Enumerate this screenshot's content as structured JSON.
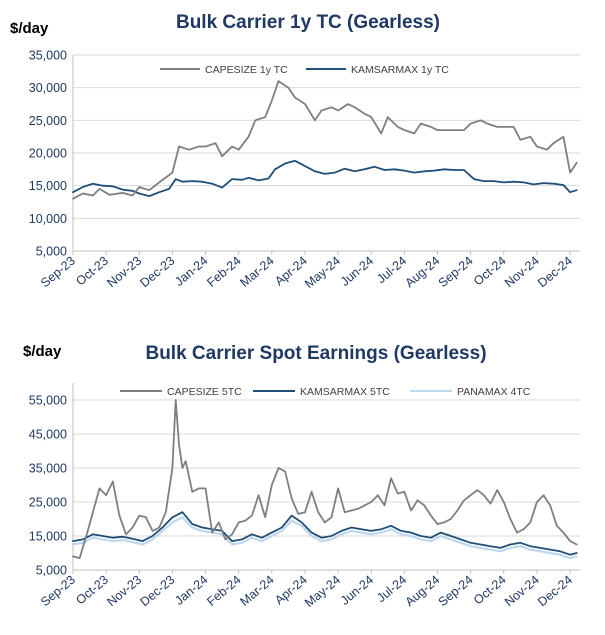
{
  "chart_data": [
    {
      "type": "line",
      "title": "Bulk Carrier 1y TC (Gearless)",
      "unit_label": "$/day",
      "ylim": [
        5000,
        35000
      ],
      "y_ticks": [
        "5,000",
        "10,000",
        "15,000",
        "20,000",
        "25,000",
        "30,000",
        "35,000"
      ],
      "y_tick_values": [
        5000,
        10000,
        15000,
        20000,
        25000,
        30000,
        35000
      ],
      "x_range": [
        0,
        15.3
      ],
      "x_tick_labels": [
        "Sep-23",
        "Oct-23",
        "Nov-23",
        "Dec-23",
        "Jan-24",
        "Feb-24",
        "Mar-24",
        "Apr-24",
        "May-24",
        "Jun-24",
        "Jul-24",
        "Aug-24",
        "Sep-24",
        "Oct-24",
        "Nov-24",
        "Dec-24"
      ],
      "grid": true,
      "legend_position": "top",
      "series": [
        {
          "name": "CAPESIZE 1y TC",
          "color": "#7f7f7f",
          "x": [
            0,
            0.3,
            0.6,
            0.8,
            1.1,
            1.5,
            1.8,
            2.0,
            2.3,
            2.6,
            3.0,
            3.2,
            3.5,
            3.8,
            4.0,
            4.3,
            4.5,
            4.8,
            5.0,
            5.3,
            5.5,
            5.8,
            6.0,
            6.2,
            6.5,
            6.7,
            7.0,
            7.3,
            7.5,
            7.8,
            8.0,
            8.3,
            8.5,
            8.8,
            9.0,
            9.3,
            9.5,
            9.8,
            10.0,
            10.3,
            10.5,
            10.8,
            11.0,
            11.3,
            11.5,
            11.8,
            12.0,
            12.3,
            12.5,
            12.8,
            13.0,
            13.3,
            13.5,
            13.8,
            14.0,
            14.3,
            14.5,
            14.8,
            15.0,
            15.2
          ],
          "values": [
            13000,
            13800,
            13500,
            14500,
            13600,
            13900,
            13500,
            14800,
            14300,
            15500,
            17000,
            21000,
            20500,
            21000,
            21000,
            21500,
            19500,
            21000,
            20500,
            22500,
            25000,
            25500,
            28000,
            31000,
            30000,
            28500,
            27500,
            25000,
            26500,
            27000,
            26500,
            27500,
            27000,
            26000,
            25500,
            23000,
            25500,
            24000,
            23500,
            23000,
            24500,
            24000,
            23500,
            23500,
            23500,
            23500,
            24500,
            25000,
            24500,
            24000,
            24000,
            24000,
            22000,
            22500,
            21000,
            20500,
            21500,
            22500,
            17000,
            18500
          ]
        },
        {
          "name": "KAMSARMAX 1y TC",
          "color": "#1f4e79",
          "x": [
            0,
            0.3,
            0.6,
            0.9,
            1.2,
            1.5,
            1.8,
            2.0,
            2.3,
            2.6,
            2.9,
            3.1,
            3.3,
            3.6,
            3.9,
            4.2,
            4.5,
            4.8,
            5.1,
            5.3,
            5.6,
            5.9,
            6.1,
            6.4,
            6.7,
            7.0,
            7.3,
            7.6,
            7.9,
            8.2,
            8.5,
            8.8,
            9.1,
            9.4,
            9.7,
            10.0,
            10.3,
            10.6,
            10.9,
            11.2,
            11.5,
            11.8,
            12.1,
            12.4,
            12.7,
            13.0,
            13.3,
            13.6,
            13.9,
            14.2,
            14.5,
            14.8,
            15.0,
            15.2
          ],
          "values": [
            14000,
            14800,
            15300,
            15000,
            14900,
            14400,
            14200,
            13800,
            13400,
            14000,
            14500,
            16000,
            15600,
            15700,
            15600,
            15300,
            14700,
            16000,
            15900,
            16200,
            15800,
            16100,
            17500,
            18400,
            18800,
            18000,
            17200,
            16800,
            17000,
            17600,
            17200,
            17500,
            17900,
            17400,
            17500,
            17300,
            17000,
            17200,
            17300,
            17500,
            17400,
            17400,
            16000,
            15700,
            15700,
            15500,
            15600,
            15500,
            15200,
            15400,
            15300,
            15100,
            14000,
            14300
          ]
        }
      ]
    },
    {
      "type": "line",
      "title": "Bulk Carrier Spot Earnings (Gearless)",
      "unit_label": "$/day",
      "ylim": [
        5000,
        60000
      ],
      "y_ticks": [
        "5,000",
        "15,000",
        "25,000",
        "35,000",
        "45,000",
        "55,000"
      ],
      "y_tick_values": [
        5000,
        15000,
        25000,
        35000,
        45000,
        55000
      ],
      "x_range": [
        0,
        15.3
      ],
      "x_tick_labels": [
        "Sep-23",
        "Oct-23",
        "Nov-23",
        "Dec-23",
        "Jan-24",
        "Feb-24",
        "Mar-24",
        "Apr-24",
        "May-24",
        "Jun-24",
        "Jul-24",
        "Aug-24",
        "Sep-24",
        "Oct-24",
        "Nov-24",
        "Dec-24"
      ],
      "grid": true,
      "legend_position": "top",
      "series": [
        {
          "name": "CAPESIZE 5TC",
          "color": "#7f7f7f",
          "x": [
            0,
            0.2,
            0.4,
            0.6,
            0.8,
            1.0,
            1.2,
            1.4,
            1.6,
            1.8,
            2.0,
            2.2,
            2.4,
            2.6,
            2.8,
            3.0,
            3.1,
            3.2,
            3.3,
            3.4,
            3.6,
            3.8,
            4.0,
            4.2,
            4.4,
            4.6,
            4.8,
            5.0,
            5.2,
            5.4,
            5.6,
            5.8,
            6.0,
            6.2,
            6.4,
            6.6,
            6.8,
            7.0,
            7.2,
            7.4,
            7.6,
            7.8,
            8.0,
            8.2,
            8.4,
            8.6,
            8.8,
            9.0,
            9.2,
            9.4,
            9.6,
            9.8,
            10.0,
            10.2,
            10.4,
            10.6,
            10.8,
            11.0,
            11.2,
            11.4,
            11.6,
            11.8,
            12.0,
            12.2,
            12.4,
            12.6,
            12.8,
            13.0,
            13.2,
            13.4,
            13.6,
            13.8,
            14.0,
            14.2,
            14.4,
            14.6,
            14.8,
            15.0,
            15.2
          ],
          "values": [
            9000,
            8500,
            15000,
            22000,
            29000,
            27000,
            31000,
            21000,
            15500,
            17500,
            21000,
            20500,
            16500,
            17500,
            22000,
            35000,
            55000,
            42000,
            35000,
            37000,
            28000,
            29000,
            29000,
            16000,
            19000,
            14000,
            15500,
            19000,
            19500,
            21000,
            27000,
            20500,
            30000,
            35000,
            34000,
            26000,
            21500,
            22000,
            28000,
            22000,
            19000,
            20500,
            29000,
            22000,
            22500,
            23000,
            24000,
            25000,
            27000,
            24000,
            32000,
            27500,
            28000,
            22500,
            25500,
            24000,
            21000,
            18500,
            19000,
            20000,
            22500,
            25500,
            27000,
            28500,
            27000,
            24500,
            28500,
            25000,
            20000,
            16000,
            17000,
            19000,
            25000,
            27000,
            24000,
            18000,
            16000,
            13500,
            12500
          ]
        },
        {
          "name": "KAMSARMAX 5TC",
          "color": "#1f4e79",
          "x": [
            0,
            0.3,
            0.6,
            0.9,
            1.2,
            1.5,
            1.8,
            2.1,
            2.4,
            2.7,
            3.0,
            3.3,
            3.6,
            3.9,
            4.2,
            4.5,
            4.8,
            5.1,
            5.4,
            5.7,
            6.0,
            6.3,
            6.6,
            6.9,
            7.2,
            7.5,
            7.8,
            8.1,
            8.4,
            8.7,
            9.0,
            9.3,
            9.6,
            9.9,
            10.2,
            10.5,
            10.8,
            11.1,
            11.4,
            11.7,
            12.0,
            12.3,
            12.6,
            12.9,
            13.2,
            13.5,
            13.8,
            14.1,
            14.4,
            14.7,
            15.0,
            15.2
          ],
          "values": [
            13500,
            14000,
            15500,
            15000,
            14500,
            14800,
            14200,
            13500,
            15000,
            17500,
            20500,
            22000,
            18500,
            17500,
            17000,
            16500,
            13500,
            14000,
            15500,
            14500,
            16000,
            17500,
            21000,
            19000,
            16000,
            14500,
            15000,
            16500,
            17500,
            17000,
            16500,
            17000,
            18000,
            16500,
            16000,
            15000,
            14500,
            16000,
            15000,
            14000,
            13000,
            12500,
            12000,
            11500,
            12500,
            13000,
            12000,
            11500,
            11000,
            10500,
            9500,
            10000
          ]
        },
        {
          "name": "PANAMAX 4TC",
          "color": "#bdd7ee",
          "x": [
            0,
            0.3,
            0.6,
            0.9,
            1.2,
            1.5,
            1.8,
            2.1,
            2.4,
            2.7,
            3.0,
            3.3,
            3.6,
            3.9,
            4.2,
            4.5,
            4.8,
            5.1,
            5.4,
            5.7,
            6.0,
            6.3,
            6.6,
            6.9,
            7.2,
            7.5,
            7.8,
            8.1,
            8.4,
            8.7,
            9.0,
            9.3,
            9.6,
            9.9,
            10.2,
            10.5,
            10.8,
            11.1,
            11.4,
            11.7,
            12.0,
            12.3,
            12.6,
            12.9,
            13.2,
            13.5,
            13.8,
            14.1,
            14.4,
            14.7,
            15.0,
            15.2
          ],
          "values": [
            12500,
            13000,
            14500,
            14000,
            13500,
            13800,
            13200,
            12500,
            14000,
            16500,
            19000,
            20500,
            17500,
            16500,
            16000,
            15500,
            12500,
            13000,
            14500,
            13500,
            15000,
            16500,
            19500,
            18000,
            15000,
            13500,
            14000,
            15500,
            16500,
            16000,
            15500,
            16000,
            17000,
            15500,
            15000,
            14000,
            13500,
            15000,
            14000,
            13000,
            12000,
            11500,
            11000,
            10500,
            11500,
            12000,
            11000,
            10500,
            10000,
            9500,
            8500,
            9000
          ]
        }
      ]
    }
  ]
}
